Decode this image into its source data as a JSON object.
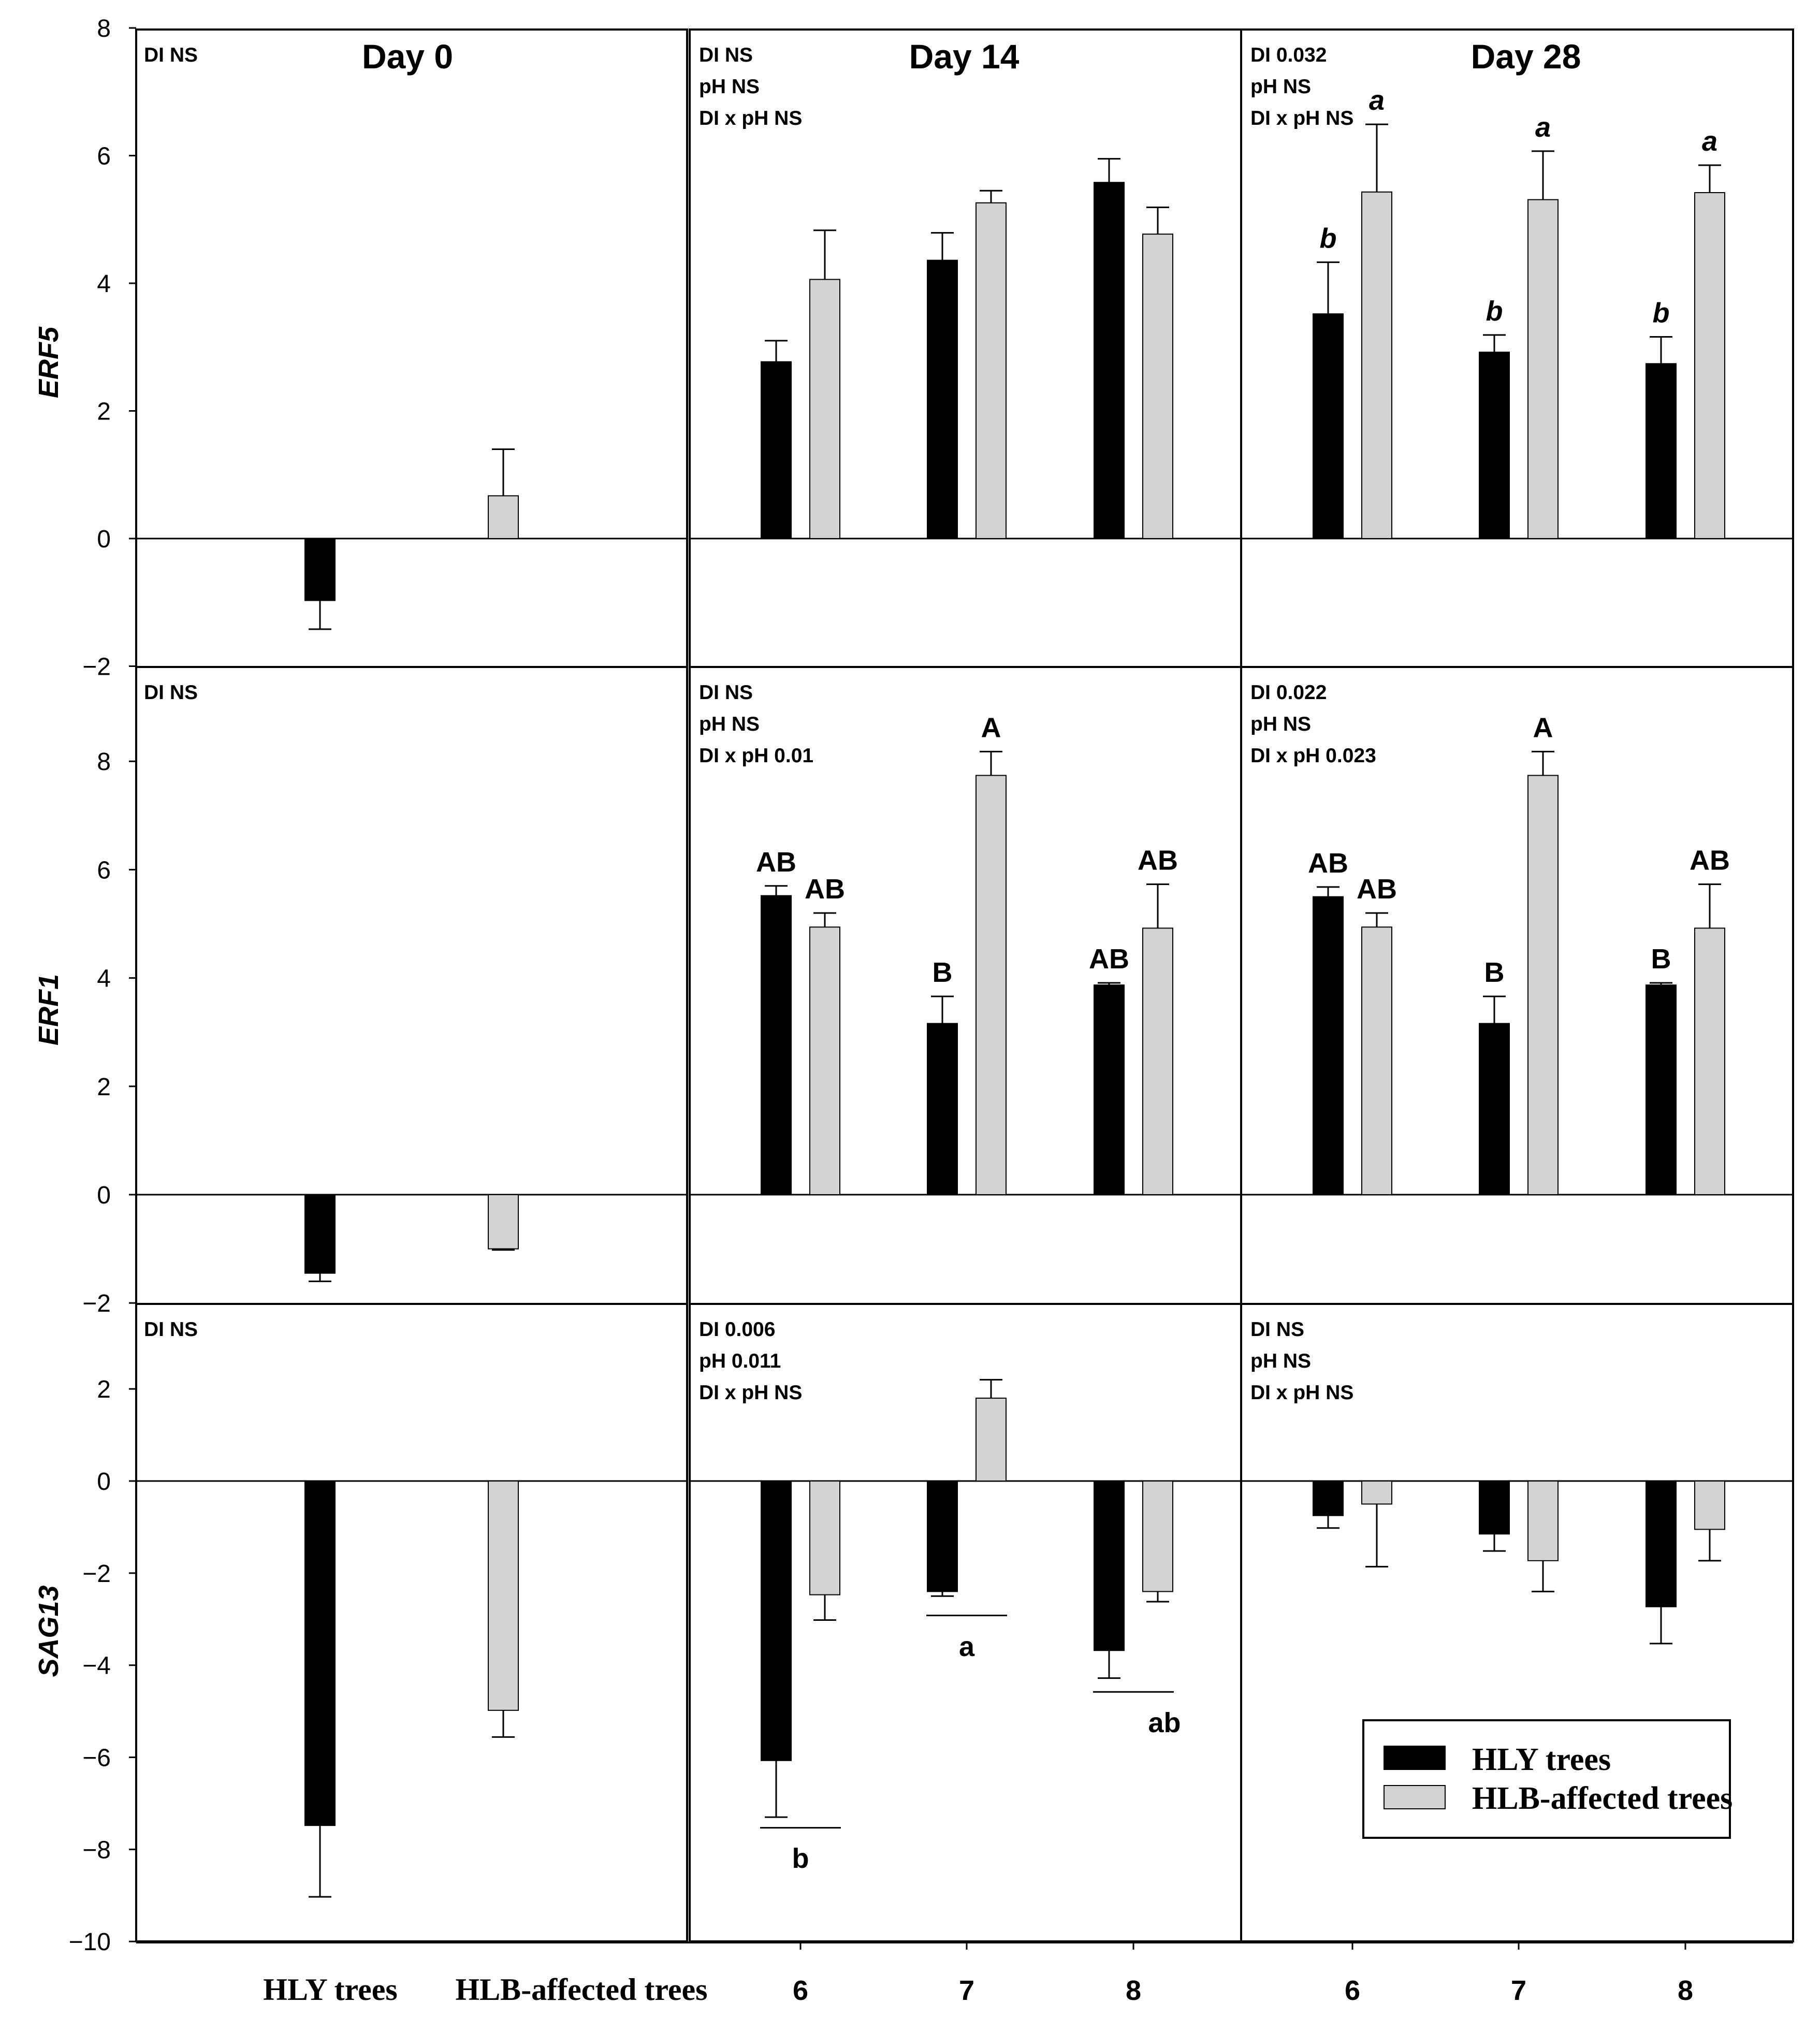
{
  "colors": {
    "hly": "#000000",
    "hlb": "#d3d3d3",
    "stroke": "#000000",
    "background": "#ffffff"
  },
  "legend": {
    "hly_label": "HLY trees",
    "hlb_label": "HLB-affected trees"
  },
  "x_categories": {
    "day0": [
      "HLY trees",
      "HLB-affected trees"
    ],
    "ph": [
      "6",
      "7",
      "8"
    ]
  },
  "chart_data": [
    {
      "type": "bar",
      "gene": "ERF5",
      "ylabel": "ERF5",
      "ylim": [
        -2,
        8
      ],
      "yticks": [
        -2,
        0,
        2,
        4,
        6,
        8
      ],
      "ytick_labels": [
        "−2",
        "0",
        "2",
        "4",
        "6",
        "8"
      ],
      "panels": [
        {
          "title": "Day 0",
          "stats": [
            "DI  NS"
          ],
          "categories": [
            "HLY trees",
            "HLB-affected trees"
          ],
          "hly": [
            {
              "value": -0.97,
              "error": 0.45
            }
          ],
          "hlb": [
            {
              "value": 0.67,
              "error": 0.73
            }
          ],
          "letters": []
        },
        {
          "title": "Day 14",
          "stats": [
            "DI  NS",
            "pH NS",
            "DI x pH NS"
          ],
          "categories": [
            "6",
            "7",
            "8"
          ],
          "hly": [
            {
              "value": 2.77,
              "error": 0.33
            },
            {
              "value": 4.36,
              "error": 0.43
            },
            {
              "value": 5.58,
              "error": 0.37
            }
          ],
          "hlb": [
            {
              "value": 4.06,
              "error": 0.77
            },
            {
              "value": 5.26,
              "error": 0.19
            },
            {
              "value": 4.77,
              "error": 0.42
            }
          ],
          "letters": []
        },
        {
          "title": "Day 28",
          "stats": [
            "DI  0.032",
            "pH NS",
            "DI x pH NS"
          ],
          "categories": [
            "6",
            "7",
            "8"
          ],
          "hly": [
            {
              "value": 3.52,
              "error": 0.81
            },
            {
              "value": 2.92,
              "error": 0.27
            },
            {
              "value": 2.74,
              "error": 0.42
            }
          ],
          "hlb": [
            {
              "value": 5.43,
              "error": 1.06
            },
            {
              "value": 5.31,
              "error": 0.76
            },
            {
              "value": 5.42,
              "error": 0.43
            }
          ],
          "letters": [
            {
              "text": "b",
              "category": 0,
              "series": "hly",
              "style": "italic"
            },
            {
              "text": "a",
              "category": 0,
              "series": "hlb",
              "style": "italic"
            },
            {
              "text": "b",
              "category": 1,
              "series": "hly",
              "style": "italic"
            },
            {
              "text": "a",
              "category": 1,
              "series": "hlb",
              "style": "italic"
            },
            {
              "text": "b",
              "category": 2,
              "series": "hly",
              "style": "italic"
            },
            {
              "text": "a",
              "category": 2,
              "series": "hlb",
              "style": "italic"
            }
          ]
        }
      ]
    },
    {
      "type": "bar",
      "gene": "ERF1",
      "ylabel": "ERF1",
      "ylim": [
        -2,
        10
      ],
      "yticks": [
        -2,
        0,
        2,
        4,
        6,
        8
      ],
      "ytick_labels": [
        "−2",
        "0",
        "2",
        "4",
        "6",
        "8"
      ],
      "panels": [
        {
          "title": "",
          "stats": [
            "DI  NS"
          ],
          "categories": [
            "HLY trees",
            "HLB-affected trees"
          ],
          "hly": [
            {
              "value": -1.45,
              "error": 0.15
            }
          ],
          "hlb": [
            {
              "value": -1.0,
              "error": 0.02
            }
          ],
          "letters": []
        },
        {
          "title": "",
          "stats": [
            "DI  NS",
            "pH NS",
            "DI x pH 0.01"
          ],
          "categories": [
            "6",
            "7",
            "8"
          ],
          "hly": [
            {
              "value": 5.52,
              "error": 0.18
            },
            {
              "value": 3.16,
              "error": 0.5
            },
            {
              "value": 3.87,
              "error": 0.04
            }
          ],
          "hlb": [
            {
              "value": 4.94,
              "error": 0.26
            },
            {
              "value": 7.74,
              "error": 0.44
            },
            {
              "value": 4.92,
              "error": 0.81
            }
          ],
          "letters": [
            {
              "text": "AB",
              "category": 0,
              "series": "hly",
              "style": "normal"
            },
            {
              "text": "AB",
              "category": 0,
              "series": "hlb",
              "style": "normal"
            },
            {
              "text": "B",
              "category": 1,
              "series": "hly",
              "style": "normal"
            },
            {
              "text": "A",
              "category": 1,
              "series": "hlb",
              "style": "normal"
            },
            {
              "text": "AB",
              "category": 2,
              "series": "hly",
              "style": "normal"
            },
            {
              "text": "AB",
              "category": 2,
              "series": "hlb",
              "style": "normal"
            }
          ]
        },
        {
          "title": "",
          "stats": [
            "DI  0.022",
            "pH NS",
            "DI x pH 0.023"
          ],
          "categories": [
            "6",
            "7",
            "8"
          ],
          "hly": [
            {
              "value": 5.5,
              "error": 0.18
            },
            {
              "value": 3.16,
              "error": 0.5
            },
            {
              "value": 3.87,
              "error": 0.04
            }
          ],
          "hlb": [
            {
              "value": 4.94,
              "error": 0.26
            },
            {
              "value": 7.74,
              "error": 0.44
            },
            {
              "value": 4.92,
              "error": 0.81
            }
          ],
          "letters": [
            {
              "text": "AB",
              "category": 0,
              "series": "hly",
              "style": "normal"
            },
            {
              "text": "AB",
              "category": 0,
              "series": "hlb",
              "style": "normal"
            },
            {
              "text": "B",
              "category": 1,
              "series": "hly",
              "style": "normal"
            },
            {
              "text": "A",
              "category": 1,
              "series": "hlb",
              "style": "normal"
            },
            {
              "text": "B",
              "category": 2,
              "series": "hly",
              "style": "normal"
            },
            {
              "text": "AB",
              "category": 2,
              "series": "hlb",
              "style": "normal"
            }
          ]
        }
      ]
    },
    {
      "type": "bar",
      "gene": "SAG13",
      "ylabel": "SAG13",
      "ylim": [
        -10,
        3.7
      ],
      "yticks": [
        -10,
        -8,
        -6,
        -4,
        -2,
        0,
        2
      ],
      "ytick_labels": [
        "−10",
        "−8",
        "−6",
        "−4",
        "−2",
        "0",
        "2"
      ],
      "panels": [
        {
          "title": "",
          "stats": [
            "DI  NS"
          ],
          "categories": [
            "HLY trees",
            "HLB-affected trees"
          ],
          "hly": [
            {
              "value": -7.48,
              "error": 1.55
            }
          ],
          "hlb": [
            {
              "value": -4.98,
              "error": 0.58
            }
          ],
          "letters": []
        },
        {
          "title": "",
          "stats": [
            "DI  0.006",
            "pH 0.011",
            "DI x pH NS"
          ],
          "categories": [
            "6",
            "7",
            "8"
          ],
          "hly": [
            {
              "value": -6.07,
              "error": 1.23
            },
            {
              "value": -2.4,
              "error": 0.1
            },
            {
              "value": -3.68,
              "error": 0.6
            }
          ],
          "hlb": [
            {
              "value": -2.47,
              "error": 0.55
            },
            {
              "value": 1.8,
              "error": 0.4
            },
            {
              "value": -2.4,
              "error": 0.22
            }
          ],
          "letters": [],
          "group_letters": [
            {
              "text": "b",
              "category": 0,
              "line_value": -7.53,
              "text_value": -8.2
            },
            {
              "text": "a",
              "category": 1,
              "line_value": -2.92,
              "text_value": -3.6
            },
            {
              "text": "ab",
              "category": 2,
              "line_value": -4.58,
              "text_value": -5.25
            }
          ]
        },
        {
          "title": "",
          "stats": [
            "DI  NS",
            "pH NS",
            "DI x pH NS"
          ],
          "categories": [
            "6",
            "7",
            "8"
          ],
          "hly": [
            {
              "value": -0.75,
              "error": 0.27
            },
            {
              "value": -1.15,
              "error": 0.37
            },
            {
              "value": -2.73,
              "error": 0.8
            }
          ],
          "hlb": [
            {
              "value": -0.5,
              "error": 1.36
            },
            {
              "value": -1.73,
              "error": 0.67
            },
            {
              "value": -1.05,
              "error": 0.68
            }
          ],
          "letters": []
        }
      ]
    }
  ]
}
